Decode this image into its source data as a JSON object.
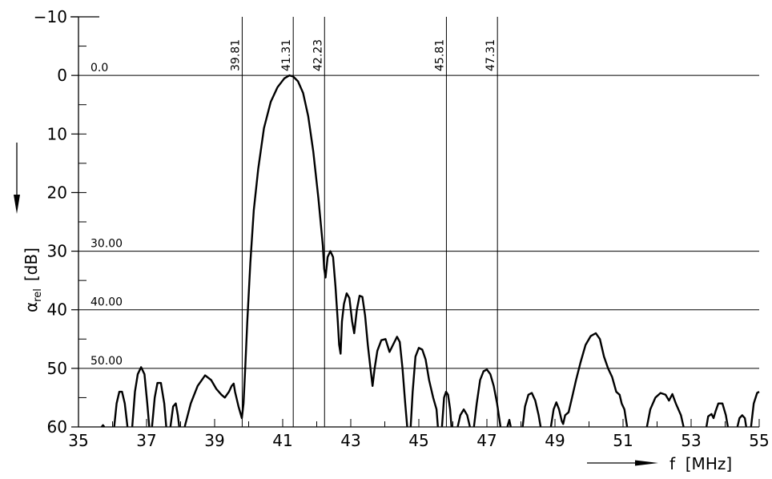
{
  "chart_data": {
    "type": "line",
    "xlabel": "f  [MHz]",
    "ylabel_symbol": "α",
    "ylabel_sub": "rel",
    "ylabel_unit": "[dB]",
    "xlim": [
      35,
      55
    ],
    "ylim": [
      -10,
      60
    ],
    "y_inverted": true,
    "x_ticks": [
      35,
      37,
      39,
      41,
      43,
      45,
      47,
      49,
      51,
      53,
      55
    ],
    "x_tick_labels": [
      "35",
      "37",
      "39",
      "41",
      "43",
      "45",
      "47",
      "49",
      "51",
      "53",
      "55"
    ],
    "y_ticks": [
      -10,
      0,
      10,
      20,
      30,
      40,
      50,
      60
    ],
    "y_tick_labels": [
      "−10",
      "0",
      "10",
      "20",
      "30",
      "40",
      "50",
      "60"
    ],
    "horizontal_lines": [
      {
        "value": 0,
        "label": "0.0"
      },
      {
        "value": 30,
        "label": "30.00"
      },
      {
        "value": 40,
        "label": "40.00"
      },
      {
        "value": 50,
        "label": "50.00"
      }
    ],
    "vertical_lines": [
      {
        "value": 39.81,
        "label": "39.81"
      },
      {
        "value": 41.31,
        "label": "41.31"
      },
      {
        "value": 42.23,
        "label": "42.23"
      },
      {
        "value": 45.81,
        "label": "45.81"
      },
      {
        "value": 47.31,
        "label": "47.31"
      }
    ],
    "series": [
      {
        "segments": [
          [
            [
              35.68,
              60
            ],
            [
              35.72,
              59.7
            ],
            [
              35.76,
              60
            ]
          ],
          [
            [
              36.05,
              60
            ],
            [
              36.12,
              56
            ],
            [
              36.2,
              54
            ],
            [
              36.28,
              54
            ],
            [
              36.36,
              56
            ],
            [
              36.44,
              60
            ]
          ],
          [
            [
              36.58,
              60
            ],
            [
              36.66,
              54
            ],
            [
              36.74,
              51
            ],
            [
              36.84,
              49.8
            ],
            [
              36.94,
              51
            ],
            [
              37.02,
              56
            ],
            [
              37.08,
              60
            ]
          ],
          [
            [
              37.16,
              60
            ],
            [
              37.24,
              55
            ],
            [
              37.32,
              52.5
            ],
            [
              37.42,
              52.5
            ],
            [
              37.52,
              56
            ],
            [
              37.58,
              60
            ]
          ],
          [
            [
              37.7,
              60
            ],
            [
              37.78,
              56.5
            ],
            [
              37.86,
              56
            ],
            [
              37.92,
              58
            ],
            [
              37.96,
              60
            ]
          ],
          [
            [
              38.12,
              60
            ],
            [
              38.3,
              56
            ],
            [
              38.5,
              53
            ],
            [
              38.72,
              51.2
            ],
            [
              38.9,
              52
            ],
            [
              39.05,
              53.5
            ],
            [
              39.2,
              54.5
            ],
            [
              39.3,
              55
            ],
            [
              39.42,
              54
            ],
            [
              39.5,
              53
            ],
            [
              39.56,
              52.6
            ],
            [
              39.6,
              54
            ],
            [
              39.7,
              56.5
            ],
            [
              39.8,
              58.5
            ],
            [
              39.85,
              56
            ],
            [
              39.9,
              50
            ],
            [
              39.96,
              42
            ],
            [
              40.05,
              32
            ],
            [
              40.15,
              23
            ],
            [
              40.28,
              16
            ],
            [
              40.45,
              9
            ],
            [
              40.65,
              4.5
            ],
            [
              40.85,
              2
            ],
            [
              41.05,
              0.5
            ],
            [
              41.2,
              0
            ],
            [
              41.31,
              0.2
            ],
            [
              41.45,
              1
            ],
            [
              41.6,
              3
            ],
            [
              41.75,
              7
            ],
            [
              41.9,
              13
            ],
            [
              42.05,
              21
            ],
            [
              42.18,
              29
            ],
            [
              42.22,
              33
            ],
            [
              42.26,
              34.5
            ],
            [
              42.32,
              31
            ],
            [
              42.4,
              30
            ],
            [
              42.48,
              31
            ],
            [
              42.55,
              36
            ],
            [
              42.62,
              42
            ],
            [
              42.66,
              46
            ],
            [
              42.7,
              47.5
            ],
            [
              42.74,
              42
            ],
            [
              42.8,
              39
            ],
            [
              42.88,
              37.2
            ],
            [
              42.96,
              38
            ],
            [
              43.04,
              42
            ],
            [
              43.1,
              44
            ],
            [
              43.18,
              40
            ],
            [
              43.26,
              37.6
            ],
            [
              43.34,
              37.8
            ],
            [
              43.42,
              41
            ],
            [
              43.5,
              46
            ],
            [
              43.58,
              50
            ],
            [
              43.64,
              53
            ],
            [
              43.7,
              50
            ],
            [
              43.78,
              47
            ],
            [
              43.9,
              45.2
            ],
            [
              44.02,
              45
            ],
            [
              44.14,
              47.2
            ],
            [
              44.24,
              46
            ],
            [
              44.36,
              44.6
            ],
            [
              44.44,
              45.5
            ],
            [
              44.52,
              50
            ],
            [
              44.6,
              56
            ],
            [
              44.66,
              60
            ]
          ],
          [
            [
              44.76,
              60
            ],
            [
              44.82,
              54
            ],
            [
              44.9,
              48
            ],
            [
              45.0,
              46.5
            ],
            [
              45.1,
              46.8
            ],
            [
              45.2,
              48.5
            ],
            [
              45.3,
              52
            ],
            [
              45.42,
              55
            ],
            [
              45.52,
              57
            ],
            [
              45.56,
              60
            ]
          ],
          [
            [
              45.68,
              60
            ],
            [
              45.74,
              55
            ],
            [
              45.8,
              54
            ],
            [
              45.86,
              54.5
            ],
            [
              45.92,
              57
            ],
            [
              45.96,
              60
            ]
          ],
          [
            [
              46.14,
              60
            ],
            [
              46.22,
              58
            ],
            [
              46.32,
              57
            ],
            [
              46.42,
              58
            ],
            [
              46.5,
              60
            ]
          ],
          [
            [
              46.62,
              60
            ],
            [
              46.7,
              56
            ],
            [
              46.8,
              52
            ],
            [
              46.9,
              50.5
            ],
            [
              47.0,
              50.2
            ],
            [
              47.1,
              51
            ],
            [
              47.2,
              53
            ],
            [
              47.3,
              56
            ],
            [
              47.4,
              60
            ]
          ],
          [
            [
              47.6,
              60
            ],
            [
              47.66,
              58.8
            ],
            [
              47.7,
              60
            ]
          ],
          [
            [
              48.05,
              60
            ],
            [
              48.12,
              56.5
            ],
            [
              48.22,
              54.5
            ],
            [
              48.32,
              54.2
            ],
            [
              48.42,
              55.5
            ],
            [
              48.52,
              58
            ],
            [
              48.58,
              60
            ]
          ],
          [
            [
              48.88,
              60
            ],
            [
              48.96,
              57
            ],
            [
              49.04,
              55.8
            ],
            [
              49.12,
              57
            ],
            [
              49.2,
              59
            ],
            [
              49.24,
              59.5
            ],
            [
              49.3,
              58
            ],
            [
              49.4,
              57.5
            ],
            [
              49.5,
              55
            ],
            [
              49.62,
              52
            ],
            [
              49.75,
              49
            ],
            [
              49.9,
              46
            ],
            [
              50.05,
              44.5
            ],
            [
              50.2,
              44
            ],
            [
              50.32,
              45
            ],
            [
              50.44,
              48
            ],
            [
              50.56,
              50
            ],
            [
              50.68,
              51.5
            ],
            [
              50.8,
              54
            ],
            [
              50.9,
              54.5
            ],
            [
              50.96,
              56
            ],
            [
              51.04,
              57
            ],
            [
              51.12,
              60
            ]
          ],
          [
            [
              51.7,
              60
            ],
            [
              51.8,
              57
            ],
            [
              51.95,
              55
            ],
            [
              52.1,
              54.2
            ],
            [
              52.25,
              54.5
            ],
            [
              52.35,
              55.5
            ],
            [
              52.45,
              54.4
            ],
            [
              52.55,
              56
            ],
            [
              52.7,
              58
            ],
            [
              52.78,
              60
            ]
          ],
          [
            [
              53.45,
              60
            ],
            [
              53.5,
              58.2
            ],
            [
              53.6,
              57.8
            ],
            [
              53.66,
              58.5
            ],
            [
              53.72,
              57.3
            ],
            [
              53.8,
              56
            ],
            [
              53.92,
              56
            ],
            [
              54.02,
              58
            ],
            [
              54.08,
              60
            ]
          ],
          [
            [
              54.36,
              60
            ],
            [
              54.42,
              58.5
            ],
            [
              54.5,
              58
            ],
            [
              54.58,
              58.5
            ],
            [
              54.62,
              60
            ]
          ],
          [
            [
              54.76,
              60
            ],
            [
              54.84,
              56
            ],
            [
              54.94,
              54.2
            ],
            [
              55.0,
              54
            ]
          ]
        ]
      }
    ]
  }
}
